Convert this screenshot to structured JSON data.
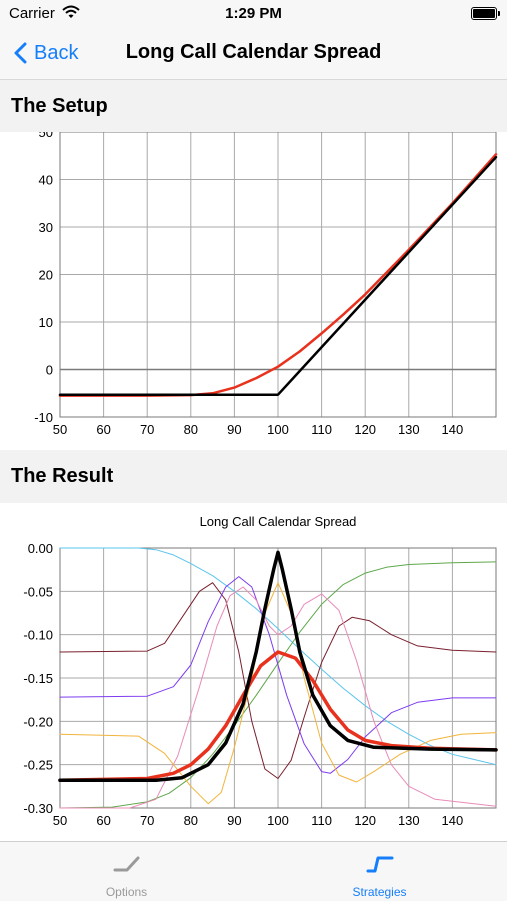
{
  "status_bar": {
    "carrier": "Carrier",
    "time": "1:29 PM"
  },
  "nav": {
    "back_label": "Back",
    "title": "Long Call Calendar Spread"
  },
  "sections": {
    "setup_title": "The Setup",
    "result_title": "The Result"
  },
  "tabs": [
    {
      "label": "Options",
      "icon": "option-payoff-icon",
      "selected": false
    },
    {
      "label": "Strategies",
      "icon": "strategy-payoff-icon",
      "selected": true
    }
  ],
  "colors": {
    "tint": "#157efb",
    "inactive": "#9a9a9a"
  },
  "chart_data": [
    {
      "type": "line",
      "title": "",
      "xlabel": "",
      "ylabel": "",
      "xlim": [
        50,
        150
      ],
      "ylim": [
        -10,
        50
      ],
      "x_ticks": [
        50,
        60,
        70,
        80,
        90,
        100,
        110,
        120,
        130,
        140
      ],
      "y_ticks": [
        -10,
        0,
        10,
        20,
        30,
        40,
        50
      ],
      "grid": true,
      "series": [
        {
          "color": "#e8321e",
          "points": [
            [
              50,
              -5.5
            ],
            [
              70,
              -5.5
            ],
            [
              80,
              -5.4
            ],
            [
              85,
              -5.0
            ],
            [
              90,
              -3.8
            ],
            [
              95,
              -1.8
            ],
            [
              100,
              0.6
            ],
            [
              105,
              3.8
            ],
            [
              110,
              7.6
            ],
            [
              115,
              11.6
            ],
            [
              120,
              15.8
            ],
            [
              130,
              25.2
            ],
            [
              140,
              35.0
            ],
            [
              150,
              45.3
            ]
          ]
        },
        {
          "color": "#000000",
          "points": [
            [
              50,
              -5.3
            ],
            [
              100,
              -5.3
            ],
            [
              150,
              44.7
            ]
          ]
        }
      ]
    },
    {
      "type": "line",
      "title": "Long Call Calendar Spread",
      "xlabel": "",
      "ylabel": "",
      "xlim": [
        50,
        150
      ],
      "ylim": [
        -0.3,
        0.0
      ],
      "x_ticks": [
        50,
        60,
        70,
        80,
        90,
        100,
        110,
        120,
        130,
        140
      ],
      "y_ticks": [
        "0.00",
        "-0.05",
        "-0.10",
        "-0.15",
        "-0.20",
        "-0.25",
        "-0.30"
      ],
      "grid": true,
      "series": [
        {
          "color": "#5bc4ec",
          "width": 1,
          "points": [
            [
              50,
              0
            ],
            [
              68,
              0
            ],
            [
              72,
              -0.002
            ],
            [
              76,
              -0.008
            ],
            [
              80,
              -0.018
            ],
            [
              85,
              -0.032
            ],
            [
              90,
              -0.05
            ],
            [
              95,
              -0.07
            ],
            [
              100,
              -0.093
            ],
            [
              105,
              -0.117
            ],
            [
              110,
              -0.14
            ],
            [
              115,
              -0.162
            ],
            [
              120,
              -0.182
            ],
            [
              125,
              -0.2
            ],
            [
              130,
              -0.215
            ],
            [
              135,
              -0.228
            ],
            [
              140,
              -0.238
            ],
            [
              145,
              -0.244
            ],
            [
              150,
              -0.25
            ]
          ]
        },
        {
          "color": "#5fa84c",
          "width": 1,
          "points": [
            [
              50,
              -0.3
            ],
            [
              62,
              -0.299
            ],
            [
              70,
              -0.293
            ],
            [
              75,
              -0.283
            ],
            [
              80,
              -0.265
            ],
            [
              85,
              -0.238
            ],
            [
              90,
              -0.205
            ],
            [
              95,
              -0.17
            ],
            [
              100,
              -0.133
            ],
            [
              105,
              -0.097
            ],
            [
              110,
              -0.065
            ],
            [
              115,
              -0.042
            ],
            [
              120,
              -0.029
            ],
            [
              125,
              -0.022
            ],
            [
              130,
              -0.019
            ],
            [
              140,
              -0.017
            ],
            [
              150,
              -0.016
            ]
          ]
        },
        {
          "color": "#7a1f2e",
          "width": 1,
          "points": [
            [
              50,
              -0.12
            ],
            [
              70,
              -0.119
            ],
            [
              74,
              -0.11
            ],
            [
              78,
              -0.08
            ],
            [
              82,
              -0.05
            ],
            [
              85,
              -0.04
            ],
            [
              88,
              -0.06
            ],
            [
              91,
              -0.12
            ],
            [
              94,
              -0.2
            ],
            [
              97,
              -0.255
            ],
            [
              100,
              -0.266
            ],
            [
              103,
              -0.245
            ],
            [
              106,
              -0.195
            ],
            [
              110,
              -0.132
            ],
            [
              114,
              -0.09
            ],
            [
              117,
              -0.08
            ],
            [
              121,
              -0.084
            ],
            [
              126,
              -0.1
            ],
            [
              132,
              -0.113
            ],
            [
              140,
              -0.118
            ],
            [
              150,
              -0.12
            ]
          ]
        },
        {
          "color": "#7d3cf0",
          "width": 1,
          "points": [
            [
              50,
              -0.172
            ],
            [
              70,
              -0.171
            ],
            [
              76,
              -0.16
            ],
            [
              80,
              -0.135
            ],
            [
              84,
              -0.085
            ],
            [
              88,
              -0.045
            ],
            [
              91,
              -0.033
            ],
            [
              94,
              -0.045
            ],
            [
              98,
              -0.1
            ],
            [
              102,
              -0.17
            ],
            [
              106,
              -0.226
            ],
            [
              110,
              -0.258
            ],
            [
              112,
              -0.26
            ],
            [
              116,
              -0.244
            ],
            [
              120,
              -0.218
            ],
            [
              126,
              -0.19
            ],
            [
              132,
              -0.178
            ],
            [
              140,
              -0.173
            ],
            [
              150,
              -0.173
            ]
          ]
        },
        {
          "color": "#e88bb8",
          "width": 1,
          "points": [
            [
              50,
              -0.3
            ],
            [
              66,
              -0.3
            ],
            [
              72,
              -0.29
            ],
            [
              77,
              -0.24
            ],
            [
              82,
              -0.16
            ],
            [
              86,
              -0.09
            ],
            [
              89,
              -0.055
            ],
            [
              92,
              -0.045
            ],
            [
              95,
              -0.06
            ],
            [
              98,
              -0.09
            ],
            [
              100,
              -0.1
            ],
            [
              103,
              -0.09
            ],
            [
              106,
              -0.065
            ],
            [
              110,
              -0.053
            ],
            [
              114,
              -0.072
            ],
            [
              118,
              -0.13
            ],
            [
              122,
              -0.2
            ],
            [
              126,
              -0.25
            ],
            [
              130,
              -0.275
            ],
            [
              136,
              -0.29
            ],
            [
              150,
              -0.298
            ]
          ]
        },
        {
          "color": "#f2b43c",
          "width": 1,
          "points": [
            [
              50,
              -0.215
            ],
            [
              68,
              -0.217
            ],
            [
              74,
              -0.237
            ],
            [
              80,
              -0.275
            ],
            [
              84,
              -0.295
            ],
            [
              87,
              -0.282
            ],
            [
              90,
              -0.23
            ],
            [
              94,
              -0.15
            ],
            [
              97,
              -0.075
            ],
            [
              100,
              -0.04
            ],
            [
              103,
              -0.075
            ],
            [
              106,
              -0.15
            ],
            [
              110,
              -0.225
            ],
            [
              114,
              -0.262
            ],
            [
              118,
              -0.27
            ],
            [
              122,
              -0.258
            ],
            [
              128,
              -0.238
            ],
            [
              135,
              -0.222
            ],
            [
              142,
              -0.215
            ],
            [
              150,
              -0.213
            ]
          ]
        },
        {
          "color": "#e8321e",
          "width": 3.5,
          "points": [
            [
              50,
              -0.268
            ],
            [
              70,
              -0.266
            ],
            [
              76,
              -0.26
            ],
            [
              80,
              -0.25
            ],
            [
              84,
              -0.232
            ],
            [
              88,
              -0.205
            ],
            [
              92,
              -0.17
            ],
            [
              96,
              -0.136
            ],
            [
              100,
              -0.12
            ],
            [
              104,
              -0.127
            ],
            [
              108,
              -0.153
            ],
            [
              112,
              -0.186
            ],
            [
              116,
              -0.21
            ],
            [
              120,
              -0.222
            ],
            [
              126,
              -0.228
            ],
            [
              135,
              -0.231
            ],
            [
              150,
              -0.233
            ]
          ]
        },
        {
          "color": "#000000",
          "width": 3.5,
          "points": [
            [
              50,
              -0.268
            ],
            [
              72,
              -0.268
            ],
            [
              78,
              -0.265
            ],
            [
              84,
              -0.25
            ],
            [
              88,
              -0.225
            ],
            [
              92,
              -0.18
            ],
            [
              95,
              -0.12
            ],
            [
              97,
              -0.07
            ],
            [
              99,
              -0.025
            ],
            [
              100,
              -0.005
            ],
            [
              101,
              -0.025
            ],
            [
              103,
              -0.07
            ],
            [
              105,
              -0.12
            ],
            [
              108,
              -0.17
            ],
            [
              112,
              -0.205
            ],
            [
              116,
              -0.222
            ],
            [
              122,
              -0.23
            ],
            [
              135,
              -0.232
            ],
            [
              150,
              -0.233
            ]
          ]
        }
      ]
    }
  ]
}
